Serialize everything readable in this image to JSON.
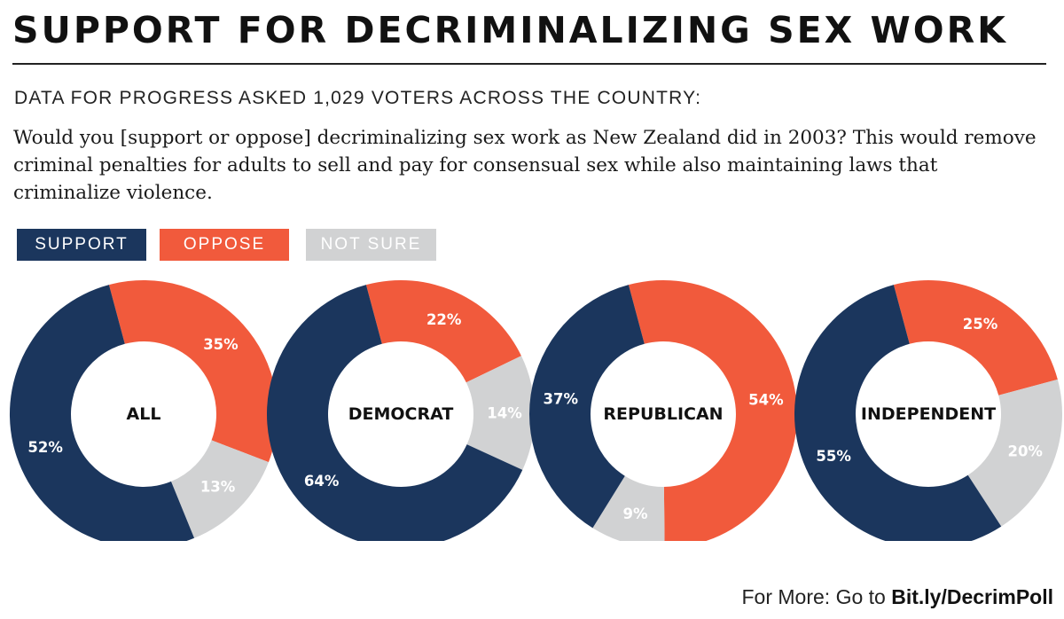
{
  "header": {
    "title": "SUPPORT FOR DECRIMINALIZING SEX WORK",
    "subtitle": "DATA FOR PROGRESS ASKED 1,029 VOTERS ACROSS THE COUNTRY:",
    "question": "Would you [support or oppose] decriminalizing sex work as New Zealand did in 2003? This would remove criminal penalties for adults to sell and pay for consensual sex while also maintaining laws that criminalize violence."
  },
  "colors": {
    "support": "#1b365d",
    "oppose": "#f15a3c",
    "not_sure": "#d1d2d3",
    "label_on_color": "#ffffff"
  },
  "chart_data": {
    "type": "pie",
    "variant": "donut",
    "legend": [
      "SUPPORT",
      "OPPOSE",
      "NOT SURE"
    ],
    "series_order": [
      "oppose",
      "not_sure",
      "support"
    ],
    "charts": [
      {
        "name": "ALL",
        "oppose": 35,
        "not_sure": 13,
        "support": 52,
        "labels": {
          "oppose": "35%",
          "not_sure": "13%",
          "support": "52%"
        }
      },
      {
        "name": "DEMOCRAT",
        "oppose": 22,
        "not_sure": 14,
        "support": 64,
        "labels": {
          "oppose": "22%",
          "not_sure": "14%",
          "support": "64%"
        }
      },
      {
        "name": "REPUBLICAN",
        "oppose": 54,
        "not_sure": 9,
        "support": 37,
        "labels": {
          "oppose": "54%",
          "not_sure": "9%",
          "support": "37%"
        }
      },
      {
        "name": "INDEPENDENT",
        "oppose": 25,
        "not_sure": 20,
        "support": 55,
        "labels": {
          "oppose": "25%",
          "not_sure": "20%",
          "support": "55%"
        }
      }
    ]
  },
  "footer": {
    "prefix": "For More: Go to ",
    "link": "Bit.ly/DecrimPoll"
  }
}
